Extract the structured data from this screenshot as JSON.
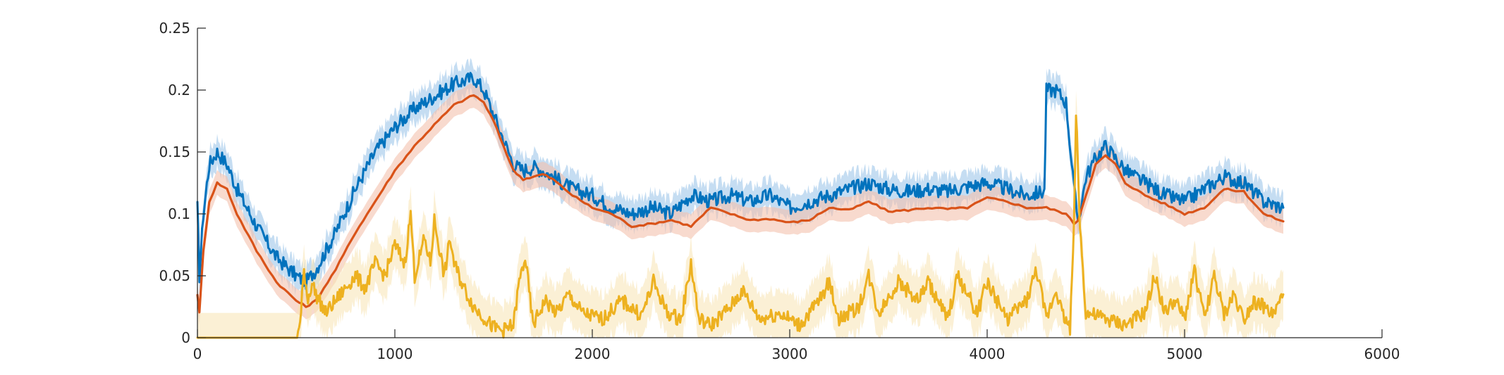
{
  "chart_data": {
    "type": "line",
    "title": "",
    "xlabel": "",
    "ylabel": "",
    "xlim": [
      0,
      6000
    ],
    "ylim": [
      0,
      0.25
    ],
    "grid": false,
    "legend": "none",
    "x_ticks": [
      0,
      1000,
      2000,
      3000,
      4000,
      5000,
      6000
    ],
    "x_tick_labels": [
      "0",
      "1000",
      "2000",
      "3000",
      "4000",
      "5000",
      "6000"
    ],
    "y_ticks": [
      0,
      0.05,
      0.1,
      0.15,
      0.2,
      0.25
    ],
    "y_tick_labels": [
      "0",
      "0.05",
      "0.1",
      "0.15",
      "0.2",
      "0.25"
    ],
    "series": [
      {
        "color": "#0072BD",
        "band_color": "#9fc7ea",
        "x": [
          0,
          10,
          30,
          60,
          100,
          150,
          200,
          300,
          400,
          500,
          550,
          600,
          700,
          800,
          900,
          1000,
          1100,
          1200,
          1300,
          1400,
          1450,
          1500,
          1550,
          1600,
          1650,
          1700,
          1750,
          1800,
          1900,
          2000,
          2100,
          2200,
          2300,
          2400,
          2500,
          2600,
          2700,
          2800,
          2900,
          3000,
          3100,
          3200,
          3300,
          3400,
          3500,
          3600,
          3700,
          3800,
          3900,
          4000,
          4100,
          4200,
          4290,
          4300,
          4350,
          4400,
          4440,
          4460,
          4480,
          4500,
          4550,
          4600,
          4650,
          4700,
          4800,
          4900,
          5000,
          5100,
          5200,
          5300,
          5400,
          5500
        ],
        "values": [
          0.105,
          0.05,
          0.1,
          0.14,
          0.15,
          0.14,
          0.12,
          0.09,
          0.065,
          0.05,
          0.045,
          0.055,
          0.085,
          0.12,
          0.15,
          0.17,
          0.185,
          0.195,
          0.205,
          0.21,
          0.2,
          0.18,
          0.16,
          0.14,
          0.135,
          0.138,
          0.135,
          0.13,
          0.12,
          0.115,
          0.105,
          0.1,
          0.105,
          0.1,
          0.115,
          0.11,
          0.115,
          0.11,
          0.115,
          0.105,
          0.11,
          0.115,
          0.12,
          0.125,
          0.12,
          0.118,
          0.12,
          0.118,
          0.122,
          0.125,
          0.12,
          0.115,
          0.118,
          0.2,
          0.2,
          0.19,
          0.12,
          0.095,
          0.11,
          0.13,
          0.145,
          0.155,
          0.145,
          0.135,
          0.125,
          0.115,
          0.11,
          0.12,
          0.13,
          0.125,
          0.11,
          0.105
        ]
      },
      {
        "color": "#D95319",
        "band_color": "#f3c2ad",
        "x": [
          0,
          10,
          30,
          60,
          100,
          150,
          200,
          300,
          400,
          500,
          550,
          600,
          700,
          800,
          900,
          1000,
          1100,
          1200,
          1300,
          1400,
          1450,
          1500,
          1550,
          1600,
          1650,
          1700,
          1750,
          1800,
          1900,
          2000,
          2100,
          2200,
          2300,
          2400,
          2500,
          2600,
          2700,
          2800,
          2900,
          3000,
          3100,
          3200,
          3300,
          3400,
          3500,
          3600,
          3700,
          3800,
          3900,
          4000,
          4100,
          4200,
          4300,
          4400,
          4440,
          4460,
          4500,
          4550,
          4600,
          4650,
          4700,
          4800,
          4900,
          5000,
          5100,
          5200,
          5300,
          5400,
          5500
        ],
        "values": [
          0.035,
          0.02,
          0.07,
          0.11,
          0.125,
          0.12,
          0.1,
          0.07,
          0.045,
          0.03,
          0.025,
          0.03,
          0.055,
          0.085,
          0.11,
          0.135,
          0.155,
          0.172,
          0.188,
          0.196,
          0.19,
          0.175,
          0.155,
          0.135,
          0.128,
          0.13,
          0.132,
          0.128,
          0.115,
          0.105,
          0.1,
          0.09,
          0.092,
          0.095,
          0.09,
          0.105,
          0.1,
          0.095,
          0.096,
          0.093,
          0.095,
          0.105,
          0.103,
          0.11,
          0.102,
          0.103,
          0.105,
          0.104,
          0.105,
          0.113,
          0.11,
          0.105,
          0.105,
          0.1,
          0.092,
          0.095,
          0.115,
          0.14,
          0.147,
          0.14,
          0.125,
          0.115,
          0.108,
          0.1,
          0.105,
          0.12,
          0.118,
          0.1,
          0.094
        ]
      },
      {
        "color": "#EDB120",
        "band_color": "#f8e4b3",
        "x": [
          0,
          100,
          200,
          300,
          400,
          500,
          520,
          540,
          560,
          580,
          600,
          650,
          700,
          750,
          800,
          850,
          900,
          950,
          1000,
          1050,
          1080,
          1100,
          1150,
          1180,
          1200,
          1250,
          1280,
          1300,
          1350,
          1400,
          1500,
          1550,
          1600,
          1630,
          1660,
          1700,
          1760,
          1820,
          1880,
          1950,
          2050,
          2150,
          2250,
          2310,
          2380,
          2450,
          2500,
          2540,
          2600,
          2700,
          2760,
          2850,
          2950,
          3050,
          3150,
          3200,
          3250,
          3350,
          3400,
          3450,
          3550,
          3650,
          3700,
          3800,
          3850,
          3950,
          4000,
          4100,
          4200,
          4250,
          4300,
          4350,
          4380,
          4420,
          4440,
          4450,
          4470,
          4500,
          4600,
          4700,
          4800,
          4850,
          4900,
          4950,
          5000,
          5050,
          5100,
          5150,
          5200,
          5250,
          5300,
          5350,
          5400,
          5450,
          5500
        ],
        "values": [
          0,
          0,
          0,
          0,
          0,
          0,
          0.01,
          0.055,
          0.03,
          0.045,
          0.035,
          0.02,
          0.03,
          0.04,
          0.05,
          0.04,
          0.06,
          0.05,
          0.075,
          0.06,
          0.1,
          0.05,
          0.08,
          0.06,
          0.095,
          0.05,
          0.08,
          0.06,
          0.04,
          0.025,
          0.008,
          0.006,
          0.01,
          0.045,
          0.065,
          0.01,
          0.03,
          0.02,
          0.035,
          0.02,
          0.015,
          0.03,
          0.018,
          0.045,
          0.02,
          0.015,
          0.06,
          0.015,
          0.01,
          0.025,
          0.038,
          0.015,
          0.02,
          0.01,
          0.03,
          0.045,
          0.015,
          0.025,
          0.05,
          0.02,
          0.045,
          0.03,
          0.045,
          0.015,
          0.05,
          0.02,
          0.045,
          0.015,
          0.03,
          0.055,
          0.015,
          0.04,
          0.02,
          0.008,
          0.09,
          0.185,
          0.09,
          0.02,
          0.015,
          0.01,
          0.02,
          0.05,
          0.02,
          0.03,
          0.015,
          0.055,
          0.015,
          0.05,
          0.018,
          0.035,
          0.015,
          0.03,
          0.025,
          0.018,
          0.035
        ]
      }
    ]
  }
}
